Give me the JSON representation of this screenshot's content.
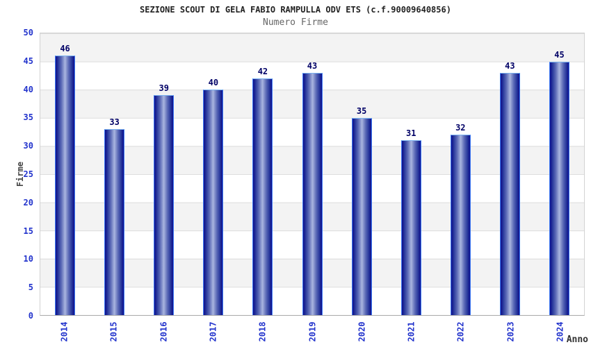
{
  "chart": {
    "title": "SEZIONE SCOUT DI GELA FABIO RAMPULLA ODV ETS (c.f.90009640856)",
    "subtitle": "Numero Firme",
    "ylabel": "Firme",
    "xlabel": "Anno"
  },
  "chart_data": {
    "type": "bar",
    "title": "SEZIONE SCOUT DI GELA FABIO RAMPULLA ODV ETS (c.f.90009640856)",
    "subtitle": "Numero Firme",
    "categories": [
      "2014",
      "2015",
      "2016",
      "2017",
      "2018",
      "2019",
      "2020",
      "2021",
      "2022",
      "2023",
      "2024"
    ],
    "values": [
      46,
      33,
      39,
      40,
      42,
      43,
      35,
      31,
      32,
      43,
      45
    ],
    "xlabel": "Anno",
    "ylabel": "Firme",
    "ylim": [
      0,
      50
    ],
    "ytick_step": 5,
    "grid": "horizontal-bands-alternating",
    "legend_position": "none",
    "value_labels": "above-bars",
    "colors": {
      "bar_edge": "#10128c",
      "bar_center": "#aab6e0",
      "bar_border": "#3d7af5",
      "axis_tick_label": "#2233cc",
      "value_label": "#000066",
      "band_gray": "#f3f3f3",
      "band_white": "#ffffff",
      "gridline": "#dcdcdc",
      "title_text": "#222222",
      "subtitle_text": "#666666"
    }
  }
}
